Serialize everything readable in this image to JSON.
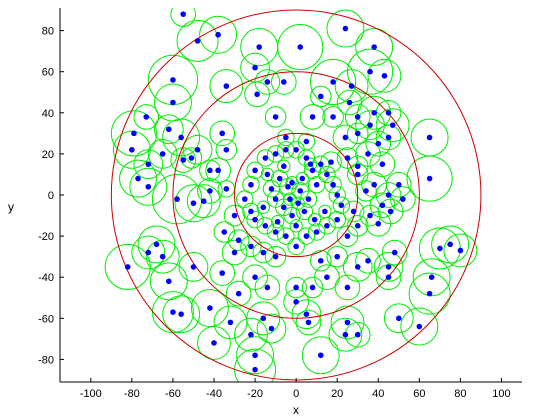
{
  "chart_data": {
    "type": "scatter",
    "title": "",
    "xlabel": "x",
    "ylabel": "y",
    "xlim": [
      -115,
      110
    ],
    "ylim": [
      -91,
      91
    ],
    "xticks": [
      -100,
      -80,
      -60,
      -40,
      -20,
      0,
      20,
      40,
      60,
      80,
      100
    ],
    "yticks": [
      -80,
      -60,
      -40,
      -20,
      0,
      20,
      40,
      60,
      80
    ],
    "grid": false,
    "legend": "none",
    "colors": {
      "points": "#0000ff",
      "point_circles": "#00ee00",
      "reference_circles": "#cc0000",
      "axes": "#000000"
    },
    "reference_circles": [
      {
        "cx": 0,
        "cy": 0,
        "r": 30
      },
      {
        "cx": 0,
        "cy": 0,
        "r": 60
      },
      {
        "cx": 0,
        "cy": 0,
        "r": 90
      }
    ],
    "points": [
      [
        -55,
        88,
        6
      ],
      [
        -48,
        75,
        10
      ],
      [
        -38,
        78,
        9
      ],
      [
        -18,
        72,
        9
      ],
      [
        2,
        72,
        11
      ],
      [
        24,
        81,
        9
      ],
      [
        38,
        72,
        9
      ],
      [
        36,
        60,
        11
      ],
      [
        -60,
        56,
        12
      ],
      [
        -34,
        53,
        8
      ],
      [
        -20,
        62,
        7
      ],
      [
        -14,
        55,
        6
      ],
      [
        -19,
        49,
        6
      ],
      [
        -6,
        55,
        6
      ],
      [
        18,
        55,
        11
      ],
      [
        27,
        53,
        8
      ],
      [
        43,
        58,
        8
      ],
      [
        8,
        38,
        6
      ],
      [
        12,
        48,
        5
      ],
      [
        26,
        45,
        6
      ],
      [
        38,
        40,
        8
      ],
      [
        45,
        40,
        6
      ],
      [
        30,
        38,
        6
      ],
      [
        -60,
        45,
        9
      ],
      [
        -73,
        38,
        6
      ],
      [
        -79,
        30,
        11
      ],
      [
        -62,
        32,
        7
      ],
      [
        -80,
        22,
        9
      ],
      [
        -72,
        15,
        7
      ],
      [
        -65,
        20,
        7
      ],
      [
        -56,
        28,
        9
      ],
      [
        -48,
        22,
        7
      ],
      [
        -51,
        18,
        5
      ],
      [
        -77,
        8,
        9
      ],
      [
        -72,
        4,
        9
      ],
      [
        -58,
        -2,
        12
      ],
      [
        -50,
        -4,
        9
      ],
      [
        -36,
        30,
        6
      ],
      [
        -34,
        22,
        5
      ],
      [
        -38,
        12,
        6
      ],
      [
        -34,
        3,
        4
      ],
      [
        -42,
        2,
        6
      ],
      [
        -55,
        17,
        6
      ],
      [
        -10,
        38,
        5
      ],
      [
        -5,
        28,
        4
      ],
      [
        5,
        26,
        4
      ],
      [
        12,
        15,
        4
      ],
      [
        15,
        10,
        4
      ],
      [
        18,
        5,
        4
      ],
      [
        20,
        0,
        4
      ],
      [
        22,
        -5,
        4
      ],
      [
        20,
        -12,
        4
      ],
      [
        15,
        -15,
        4
      ],
      [
        10,
        -18,
        4
      ],
      [
        5,
        -20,
        4
      ],
      [
        0,
        -25,
        4
      ],
      [
        -5,
        -20,
        4
      ],
      [
        -10,
        -18,
        4
      ],
      [
        -15,
        -15,
        4
      ],
      [
        -20,
        -12,
        4
      ],
      [
        -22,
        -8,
        4
      ],
      [
        -25,
        -2,
        4
      ],
      [
        -22,
        5,
        4
      ],
      [
        -20,
        12,
        4
      ],
      [
        -15,
        18,
        4
      ],
      [
        -10,
        20,
        4
      ],
      [
        -5,
        22,
        4
      ],
      [
        0,
        22,
        4
      ],
      [
        5,
        18,
        4
      ],
      [
        8,
        12,
        4
      ],
      [
        10,
        5,
        4
      ],
      [
        -8,
        8,
        4
      ],
      [
        -4,
        4,
        4
      ],
      [
        2,
        2,
        4
      ],
      [
        6,
        -2,
        4
      ],
      [
        4,
        -8,
        4
      ],
      [
        -2,
        -10,
        4
      ],
      [
        -6,
        -6,
        4
      ],
      [
        -10,
        -2,
        4
      ],
      [
        -12,
        3,
        4
      ],
      [
        -3,
        -2,
        3
      ],
      [
        1,
        -4,
        3
      ],
      [
        -2,
        6,
        3
      ],
      [
        3,
        8,
        3
      ],
      [
        -6,
        14,
        3
      ],
      [
        7,
        15,
        3
      ],
      [
        -14,
        10,
        3
      ],
      [
        14,
        -8,
        3
      ],
      [
        -16,
        -6,
        3
      ],
      [
        9,
        -12,
        3
      ],
      [
        -9,
        -13,
        3
      ],
      [
        0,
        -15,
        3
      ],
      [
        17,
        16,
        5
      ],
      [
        25,
        18,
        5
      ],
      [
        30,
        10,
        5
      ],
      [
        35,
        20,
        6
      ],
      [
        40,
        25,
        6
      ],
      [
        42,
        15,
        6
      ],
      [
        38,
        5,
        6
      ],
      [
        34,
        2,
        5
      ],
      [
        45,
        0,
        6
      ],
      [
        50,
        5,
        6
      ],
      [
        42,
        -5,
        6
      ],
      [
        36,
        -10,
        5
      ],
      [
        28,
        -8,
        5
      ],
      [
        30,
        -15,
        5
      ],
      [
        25,
        -20,
        5
      ],
      [
        40,
        -14,
        6
      ],
      [
        46,
        -8,
        6
      ],
      [
        52,
        -2,
        6
      ],
      [
        65,
        28,
        9
      ],
      [
        65,
        8,
        11
      ],
      [
        45,
        28,
        6
      ],
      [
        47,
        34,
        8
      ],
      [
        30,
        30,
        5
      ],
      [
        -42,
        12,
        5
      ],
      [
        -45,
        -3,
        8
      ],
      [
        -30,
        -10,
        5
      ],
      [
        -35,
        -18,
        5
      ],
      [
        -28,
        -22,
        5
      ],
      [
        -22,
        -25,
        5
      ],
      [
        -16,
        -28,
        5
      ],
      [
        -10,
        -30,
        5
      ],
      [
        20,
        -30,
        5
      ],
      [
        12,
        -32,
        5
      ],
      [
        -68,
        -24,
        9
      ],
      [
        -65,
        -30,
        8
      ],
      [
        -72,
        -28,
        8
      ],
      [
        -82,
        -35,
        11
      ],
      [
        -62,
        -42,
        9
      ],
      [
        -50,
        -35,
        7
      ],
      [
        -36,
        -38,
        6
      ],
      [
        -30,
        -28,
        6
      ],
      [
        30,
        -35,
        7
      ],
      [
        35,
        -32,
        6
      ],
      [
        45,
        -35,
        7
      ],
      [
        48,
        -28,
        6
      ],
      [
        45,
        -40,
        6
      ],
      [
        70,
        -26,
        10
      ],
      [
        75,
        -24,
        9
      ],
      [
        80,
        -27,
        8
      ],
      [
        66,
        -40,
        9
      ],
      [
        65,
        -48,
        10
      ],
      [
        60,
        -64,
        9
      ],
      [
        50,
        -60,
        7
      ],
      [
        25,
        -62,
        8
      ],
      [
        24,
        -68,
        8
      ],
      [
        30,
        -68,
        6
      ],
      [
        -60,
        -57,
        10
      ],
      [
        -56,
        -58,
        9
      ],
      [
        -42,
        -55,
        9
      ],
      [
        -32,
        -62,
        8
      ],
      [
        -22,
        -68,
        8
      ],
      [
        -16,
        -60,
        8
      ],
      [
        -20,
        -78,
        9
      ],
      [
        -12,
        -65,
        7
      ],
      [
        0,
        -52,
        6
      ],
      [
        5,
        -58,
        7
      ],
      [
        6,
        -62,
        6
      ],
      [
        12,
        -78,
        9
      ],
      [
        25,
        -45,
        6
      ],
      [
        15,
        -40,
        6
      ],
      [
        8,
        -45,
        5
      ],
      [
        0,
        -45,
        5
      ],
      [
        -14,
        -45,
        6
      ],
      [
        -20,
        -40,
        6
      ],
      [
        -28,
        -48,
        6
      ],
      [
        -40,
        -72,
        8
      ],
      [
        -20,
        -85,
        10
      ],
      [
        30,
        14,
        5
      ],
      [
        36,
        34,
        7
      ],
      [
        18,
        38,
        5
      ],
      [
        24,
        28,
        6
      ]
    ]
  }
}
